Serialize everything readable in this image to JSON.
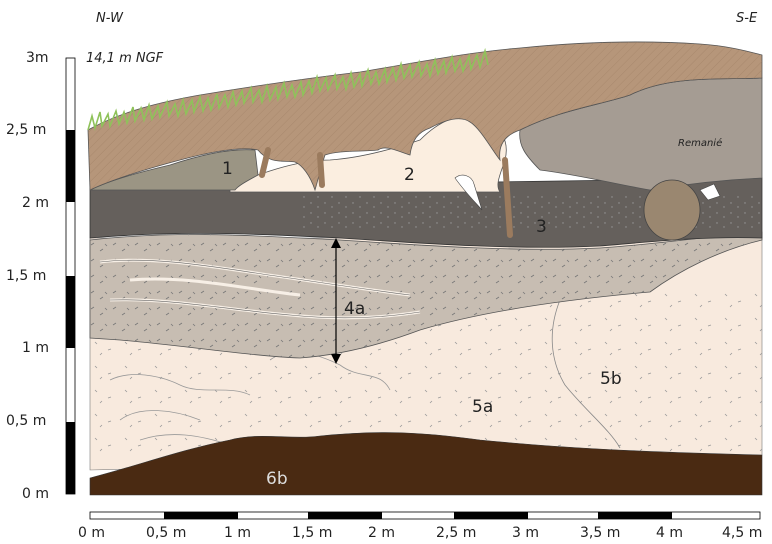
{
  "orientation": {
    "left": "N-W",
    "right": "S-E"
  },
  "altitude_label": "14,1 m NGF",
  "vertical_scale": [
    "0 m",
    "0,5 m",
    "1 m",
    "1,5 m",
    "2 m",
    "2,5 m",
    "3m"
  ],
  "horizontal_scale": [
    "0 m",
    "0,5 m",
    "1 m",
    "1,5 m",
    "2 m",
    "2,5 m",
    "3 m",
    "3,5 m",
    "4 m",
    "4,5 m"
  ],
  "layers": {
    "l1": "1",
    "l2": "2",
    "l3": "3",
    "l4a": "4a",
    "l5a": "5a",
    "l5b": "5b",
    "l6b": "6b",
    "remanie": "Remanié"
  },
  "colors": {
    "topsoil": "#b6967a",
    "grass": "#8fc25a",
    "layer1": "#9b9584",
    "layer2": "#fbeee0",
    "layer3": "#65605c",
    "layer4a": "#c7bdb2",
    "layer5": "#f8eade",
    "layer6b": "#4a2a12",
    "remanie": "#a59c93"
  }
}
